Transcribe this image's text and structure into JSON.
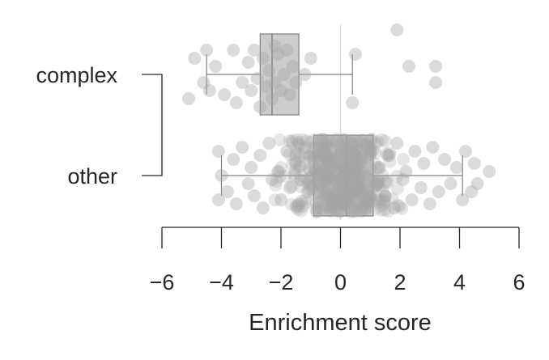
{
  "chart_data": {
    "type": "box-strip",
    "orientation": "horizontal",
    "xlabel": "Enrichment score",
    "ylabel": "",
    "xlim": [
      -6,
      6
    ],
    "xticks": [
      -6,
      -4,
      -2,
      0,
      2,
      4,
      6
    ],
    "xtick_labels": [
      "−6",
      "−4",
      "−2",
      "0",
      "2",
      "4",
      "6"
    ],
    "reference_line_x": 0,
    "categories": [
      "complex",
      "other"
    ],
    "bracket_groups": [
      [
        "complex",
        "other"
      ]
    ],
    "colors": {
      "box_fill": "#cccccc",
      "box_edge": "#808080",
      "point": "#a6a6a6",
      "axis": "#262626",
      "refline": "#d9d9d9"
    },
    "boxes": [
      {
        "category": "complex",
        "whisker_low": -4.5,
        "q1": -2.7,
        "median": -2.3,
        "q3": -1.4,
        "whisker_high": 0.4
      },
      {
        "category": "other",
        "whisker_low": -4.0,
        "q1": -0.9,
        "median": 0.2,
        "q3": 1.1,
        "whisker_high": 4.1
      }
    ],
    "points": [
      {
        "category": "complex",
        "x": [
          -5.1,
          -4.9,
          -4.6,
          -4.5,
          -4.4,
          -4.2,
          -3.9,
          -3.6,
          -3.5,
          -3.3,
          -3.1,
          -3.0,
          -2.9,
          -2.8,
          -2.7,
          -2.6,
          -2.5,
          -2.4,
          -2.3,
          -2.2,
          -2.2,
          -2.1,
          -2.0,
          -1.9,
          -1.8,
          -1.7,
          -1.6,
          -1.5,
          -1.2,
          -1.0,
          0.4,
          0.5,
          1.9,
          2.3,
          3.2,
          3.2
        ],
        "jitter": [
          0.3,
          -0.2,
          0.1,
          -0.3,
          0.2,
          -0.1,
          0.25,
          -0.3,
          0.35,
          0.1,
          -0.15,
          0.2,
          -0.3,
          0.05,
          0.4,
          -0.2,
          0.15,
          -0.05,
          0.3,
          -0.35,
          0.1,
          -0.25,
          0.2,
          0.0,
          -0.3,
          0.25,
          -0.1,
          0.1,
          0.0,
          -0.2,
          0.35,
          -0.25,
          -0.55,
          -0.1,
          0.1,
          -0.1
        ]
      },
      {
        "category": "other",
        "x": [
          -4.1,
          -4.1,
          -4.0,
          -3.8,
          -3.6,
          -3.5,
          -3.3,
          -3.1,
          -3.0,
          -2.9,
          -2.7,
          -2.6,
          -2.4,
          -2.3,
          -2.1,
          -2.0,
          -1.8,
          -1.7,
          -1.5,
          -1.4,
          -1.2,
          -1.1,
          -0.9,
          -0.8,
          -0.6,
          -0.5,
          -0.3,
          -0.2,
          0.0,
          0.1,
          0.3,
          0.4,
          0.6,
          0.7,
          0.9,
          1.0,
          1.2,
          1.3,
          1.5,
          1.6,
          1.8,
          1.9,
          2.1,
          2.2,
          2.4,
          2.5,
          2.7,
          2.8,
          3.0,
          3.1,
          3.3,
          3.5,
          3.7,
          3.9,
          4.1,
          4.2,
          4.4,
          4.5,
          4.6,
          5.0
        ],
        "jitter": [
          0.3,
          -0.3,
          0.0,
          0.2,
          -0.2,
          0.35,
          -0.35,
          0.1,
          -0.1,
          0.25,
          -0.25,
          0.4,
          -0.4,
          0.05,
          -0.05,
          0.3,
          -0.3,
          0.15,
          -0.15,
          0.35,
          -0.35,
          0.2,
          -0.2,
          0.45,
          -0.45,
          0.1,
          -0.1,
          0.3,
          -0.3,
          0.0,
          0.4,
          -0.4,
          0.2,
          -0.2,
          0.35,
          -0.35,
          0.1,
          -0.1,
          0.25,
          -0.25,
          0.4,
          -0.4,
          0.05,
          -0.05,
          0.3,
          -0.3,
          0.15,
          -0.15,
          0.35,
          -0.35,
          0.2,
          -0.2,
          0.1,
          -0.1,
          0.3,
          -0.3,
          0.2,
          -0.15,
          0.1,
          -0.05
        ]
      }
    ],
    "dense_fill": {
      "category": "other",
      "from": -2.5,
      "to": 2.5,
      "count": 400
    }
  }
}
